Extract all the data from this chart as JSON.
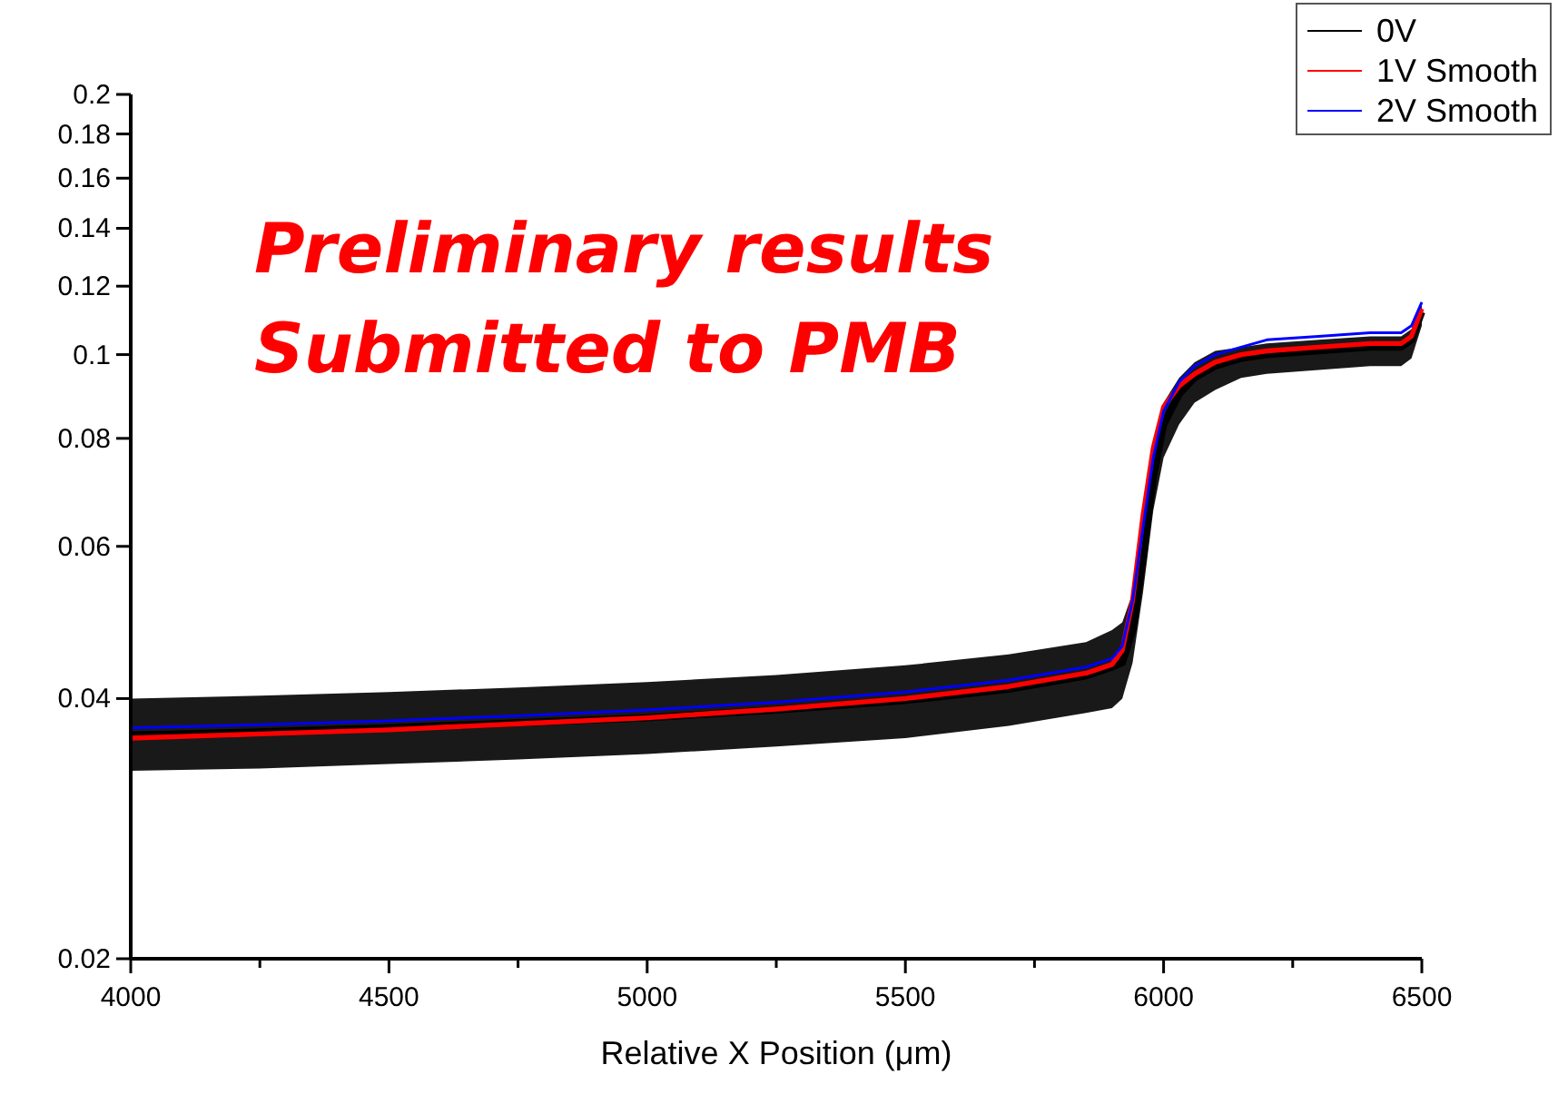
{
  "chart_data": {
    "type": "line",
    "xlabel": "Relative X Position (μm)",
    "log": "y",
    "xlim": [
      4000,
      6500
    ],
    "ylim": [
      0.02,
      0.2
    ],
    "xticks": [
      4000,
      {
        "value": 4250,
        "label": null
      },
      4500,
      {
        "value": 4750,
        "label": null
      },
      5000,
      {
        "value": 5250,
        "label": null
      },
      5500,
      {
        "value": 5750,
        "label": null
      },
      6000,
      {
        "value": 6250,
        "label": null
      },
      6500
    ],
    "yticks": [
      0.02,
      0.04,
      0.06,
      0.08,
      0.1,
      0.12,
      0.14,
      0.16,
      0.18,
      0.2
    ],
    "x": [
      4000,
      4250,
      4500,
      4750,
      5000,
      5250,
      5500,
      5700,
      5850,
      5900,
      5920,
      5940,
      5960,
      5980,
      6000,
      6030,
      6060,
      6100,
      6150,
      6200,
      6300,
      6400,
      6460,
      6480,
      6500
    ],
    "legend": "top right",
    "grid": false,
    "annotations": [
      "Preliminary results",
      "Submitted to PMB"
    ],
    "series": [
      {
        "name": "0V",
        "color": "#000000",
        "values": [
          0.0363,
          0.0366,
          0.037,
          0.0375,
          0.038,
          0.0388,
          0.0398,
          0.041,
          0.0425,
          0.0435,
          0.044,
          0.048,
          0.058,
          0.072,
          0.083,
          0.09,
          0.094,
          0.097,
          0.099,
          0.1,
          0.101,
          0.102,
          0.102,
          0.104,
          0.112
        ],
        "lower": [
          0.033,
          0.0332,
          0.0336,
          0.034,
          0.0345,
          0.0352,
          0.036,
          0.0372,
          0.0385,
          0.039,
          0.04,
          0.044,
          0.053,
          0.066,
          0.076,
          0.083,
          0.088,
          0.091,
          0.094,
          0.095,
          0.096,
          0.097,
          0.097,
          0.099,
          0.108
        ],
        "upper": [
          0.04,
          0.0403,
          0.0407,
          0.0412,
          0.0418,
          0.0426,
          0.0437,
          0.045,
          0.0465,
          0.048,
          0.049,
          0.053,
          0.063,
          0.077,
          0.088,
          0.094,
          0.098,
          0.101,
          0.102,
          0.103,
          0.104,
          0.105,
          0.105,
          0.107,
          0.115
        ]
      },
      {
        "name": "1V Smooth",
        "color": "#ff0000",
        "values": [
          0.036,
          0.0364,
          0.0368,
          0.0374,
          0.038,
          0.0389,
          0.04,
          0.0413,
          0.0428,
          0.0438,
          0.0455,
          0.052,
          0.065,
          0.078,
          0.087,
          0.092,
          0.095,
          0.098,
          0.1,
          0.101,
          0.102,
          0.103,
          0.103,
          0.105,
          0.113
        ]
      },
      {
        "name": "2V Smooth",
        "color": "#0000ff",
        "values": [
          0.037,
          0.0373,
          0.0377,
          0.0382,
          0.0388,
          0.0396,
          0.0407,
          0.042,
          0.0435,
          0.0445,
          0.046,
          0.052,
          0.063,
          0.076,
          0.086,
          0.093,
          0.097,
          0.1,
          0.102,
          0.104,
          0.105,
          0.106,
          0.106,
          0.108,
          0.115
        ]
      }
    ]
  }
}
